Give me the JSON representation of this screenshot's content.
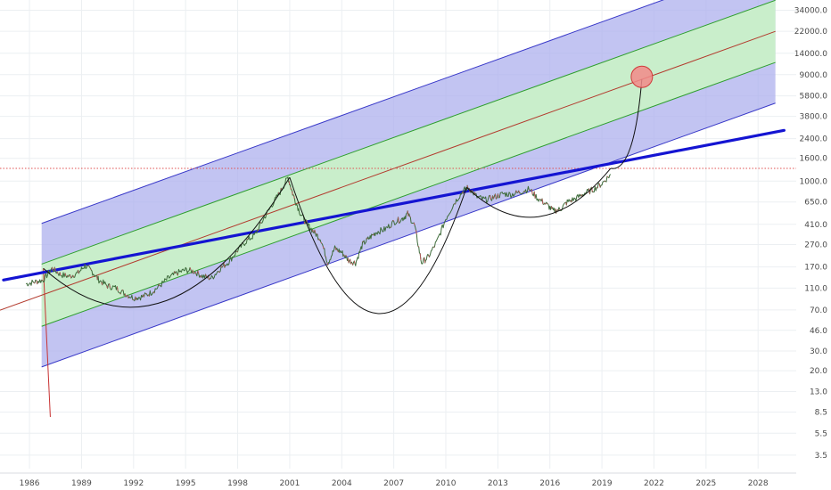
{
  "chart_data": {
    "type": "line",
    "title": "",
    "xlabel": "",
    "ylabel": "",
    "y_scale": "log",
    "xlim": [
      1984.3,
      2030.2
    ],
    "ylim": [
      2.65,
      42000
    ],
    "grid": true,
    "x_ticks": [
      {
        "value": 1986,
        "label": "1986"
      },
      {
        "value": 1989,
        "label": "1989"
      },
      {
        "value": 1992,
        "label": "1992"
      },
      {
        "value": 1995,
        "label": "1995"
      },
      {
        "value": 1998,
        "label": "1998"
      },
      {
        "value": 2001,
        "label": "2001"
      },
      {
        "value": 2004,
        "label": "2004"
      },
      {
        "value": 2007,
        "label": "2007"
      },
      {
        "value": 2010,
        "label": "2010"
      },
      {
        "value": 2013,
        "label": "2013"
      },
      {
        "value": 2016,
        "label": "2016"
      },
      {
        "value": 2019,
        "label": "2019"
      },
      {
        "value": 2022,
        "label": "2022"
      },
      {
        "value": 2025,
        "label": "2025"
      },
      {
        "value": 2028,
        "label": "2028"
      }
    ],
    "y_ticks": [
      {
        "value": 34000,
        "label": "34000.0"
      },
      {
        "value": 22000,
        "label": "22000.0"
      },
      {
        "value": 14000,
        "label": "14000.0"
      },
      {
        "value": 9000,
        "label": "9000.0"
      },
      {
        "value": 5800,
        "label": "5800.0"
      },
      {
        "value": 3800,
        "label": "3800.0"
      },
      {
        "value": 2400,
        "label": "2400.0"
      },
      {
        "value": 1600,
        "label": "1600.0"
      },
      {
        "value": 1000,
        "label": "1000.0"
      },
      {
        "value": 650,
        "label": "650.0"
      },
      {
        "value": 410,
        "label": "410.0"
      },
      {
        "value": 270,
        "label": "270.0"
      },
      {
        "value": 170,
        "label": "170.0"
      },
      {
        "value": 110,
        "label": "110.0"
      },
      {
        "value": 70,
        "label": "70.0"
      },
      {
        "value": 46,
        "label": "46.0"
      },
      {
        "value": 30,
        "label": "30.0"
      },
      {
        "value": 20,
        "label": "20.0"
      },
      {
        "value": 13,
        "label": "13.0"
      },
      {
        "value": 8.5,
        "label": "8.5"
      },
      {
        "value": 5.5,
        "label": "5.5"
      },
      {
        "value": 3.5,
        "label": "3.5"
      }
    ],
    "price_series": {
      "x": [
        1985.8,
        1986.3,
        1986.8,
        1987.3,
        1987.8,
        1988.3,
        1988.8,
        1989.2,
        1989.6,
        1990.0,
        1990.5,
        1991.0,
        1991.5,
        1992.0,
        1992.5,
        1993.0,
        1993.5,
        1994.0,
        1994.5,
        1995.0,
        1995.5,
        1996.0,
        1996.5,
        1997.0,
        1997.5,
        1998.0,
        1998.5,
        1999.0,
        1999.5,
        2000.0,
        2000.5,
        2000.9,
        2001.2,
        2001.6,
        2002.0,
        2002.4,
        2002.8,
        2003.2,
        2003.6,
        2004.0,
        2004.4,
        2004.8,
        2005.2,
        2005.6,
        2006.0,
        2006.5,
        2007.0,
        2007.5,
        2007.8,
        2008.2,
        2008.6,
        2009.0,
        2009.5,
        2010.0,
        2010.5,
        2011.0,
        2011.3,
        2011.8,
        2012.3,
        2012.8,
        2013.3,
        2013.8,
        2014.3,
        2014.8,
        2015.3,
        2015.8,
        2016.2,
        2016.6,
        2017.0,
        2017.5,
        2018.0,
        2018.5,
        2019.0,
        2019.5
      ],
      "y": [
        120,
        125,
        130,
        165,
        145,
        140,
        150,
        175,
        155,
        130,
        115,
        110,
        98,
        90,
        92,
        100,
        115,
        135,
        150,
        160,
        155,
        140,
        135,
        165,
        190,
        240,
        290,
        330,
        460,
        620,
        820,
        1080,
        750,
        520,
        410,
        350,
        300,
        185,
        250,
        230,
        195,
        185,
        270,
        310,
        350,
        370,
        430,
        460,
        510,
        400,
        185,
        210,
        290,
        460,
        640,
        820,
        880,
        720,
        680,
        720,
        770,
        760,
        800,
        850,
        700,
        620,
        540,
        560,
        650,
        700,
        780,
        840,
        950,
        1150
      ]
    },
    "channel": {
      "base_points": [
        [
          1986.7,
          95
        ],
        [
          2029.0,
          22000
        ]
      ],
      "inner_band_factor": 1.9,
      "outer_band_factor": 4.4
    },
    "blue_trendline": [
      [
        1984.5,
        130
      ],
      [
        2029.5,
        2850
      ]
    ],
    "horizontal_level": 1300,
    "arcs": [
      {
        "start": [
          1986.8,
          165
        ],
        "end": [
          2001.0,
          1080
        ],
        "bottom": 85
      },
      {
        "start": [
          2001.0,
          1080
        ],
        "end": [
          2011.2,
          880
        ],
        "bottom": 65
      },
      {
        "start": [
          2011.2,
          880
        ],
        "end": [
          2019.5,
          1300
        ],
        "bottom": 480
      },
      {
        "start": [
          2019.5,
          1300
        ],
        "end": [
          2021.3,
          8200
        ],
        "bottom": 1300
      }
    ],
    "target_circle": [
      2021.3,
      8600
    ],
    "drop_line": [
      [
        1986.8,
        165
      ],
      [
        2029.0,
        22000
      ],
      [
        1987.2,
        7.7
      ]
    ],
    "colors": {
      "blue_band": "#aeb0ee",
      "green_band": "#c9f0c8",
      "channel_edge": "#3838c8",
      "green_edge": "#2e9e2e",
      "median": "#b33b2e",
      "trendline": "#1414d2",
      "price": "#3d6b3a",
      "arc": "#111111",
      "circle_fill": "#f28a8a",
      "circle_stroke": "#d03a3a",
      "hline": "#e05050",
      "red_line": "#c83232"
    }
  }
}
